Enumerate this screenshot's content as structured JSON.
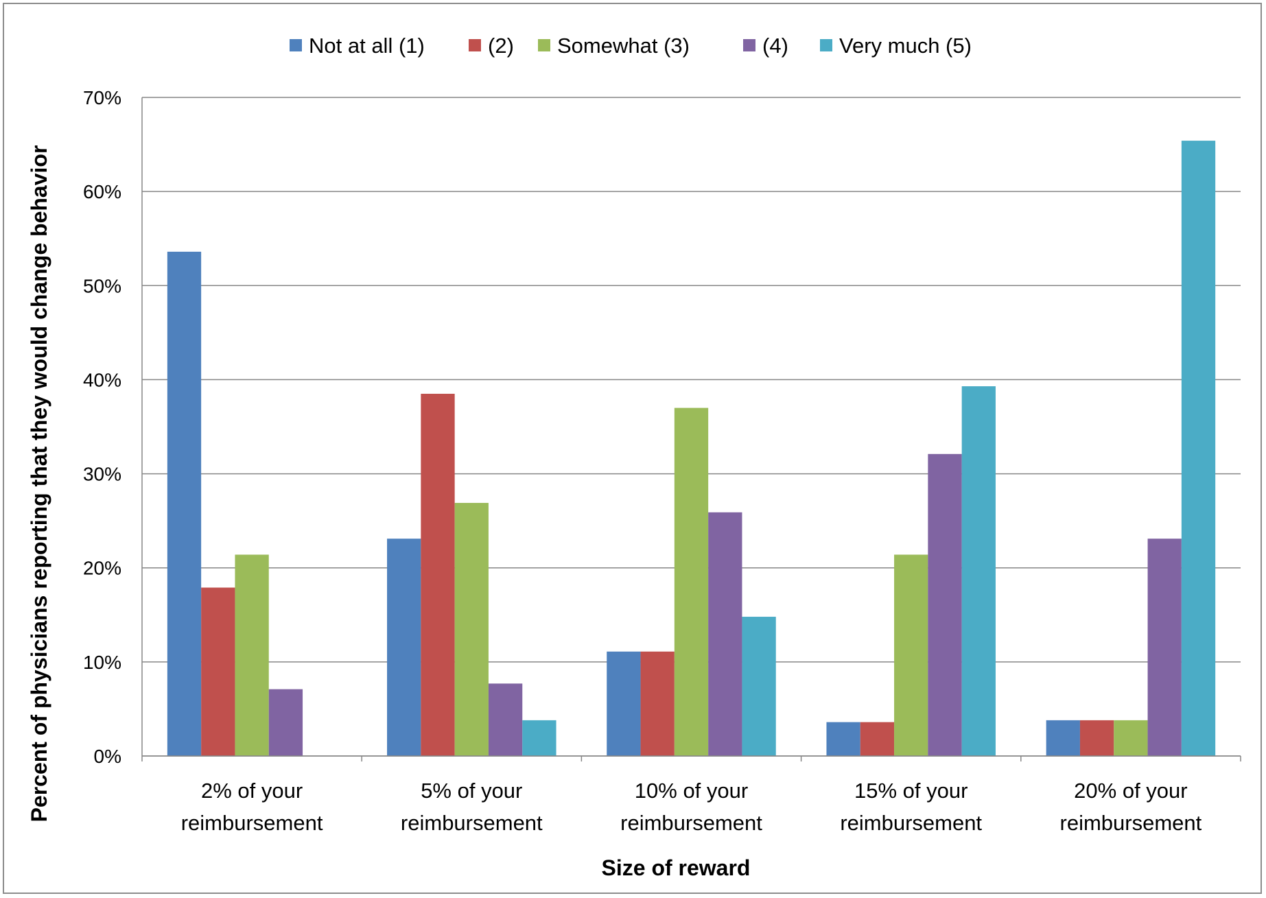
{
  "chart_data": {
    "type": "bar",
    "xlabel": "Size of reward",
    "ylabel": "Percent of physicians reporting that they would change behavior",
    "ylim": [
      0,
      70
    ],
    "y_ticks": [
      "0%",
      "10%",
      "20%",
      "30%",
      "40%",
      "50%",
      "60%",
      "70%"
    ],
    "y_tick_values": [
      0,
      10,
      20,
      30,
      40,
      50,
      60,
      70
    ],
    "grid": true,
    "legend": "top",
    "categories": [
      [
        "2% of your",
        "reimbursement"
      ],
      [
        "5% of your",
        "reimbursement"
      ],
      [
        "10% of your",
        "reimbursement"
      ],
      [
        "15% of your",
        "reimbursement"
      ],
      [
        "20% of your",
        "reimbursement"
      ]
    ],
    "series": [
      {
        "name": "Not at all (1)",
        "color": "#4F81BD",
        "values": [
          53.6,
          23.1,
          11.1,
          3.6,
          3.8
        ]
      },
      {
        "name": "(2)",
        "color": "#C0504D",
        "values": [
          17.9,
          38.5,
          11.1,
          3.6,
          3.8
        ]
      },
      {
        "name": "Somewhat (3)",
        "color": "#9BBB59",
        "values": [
          21.4,
          26.9,
          37.0,
          21.4,
          3.8
        ]
      },
      {
        "name": "(4)",
        "color": "#8064A2",
        "values": [
          7.1,
          7.7,
          25.9,
          32.1,
          23.1
        ]
      },
      {
        "name": "Very much (5)",
        "color": "#4BACC6",
        "values": [
          0,
          3.8,
          14.8,
          39.3,
          65.4
        ]
      }
    ]
  }
}
